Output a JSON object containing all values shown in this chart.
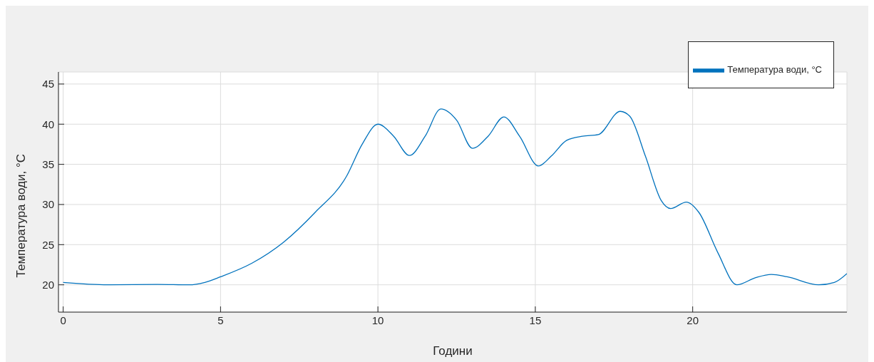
{
  "chart_data": {
    "type": "line",
    "xlabel": "Години",
    "ylabel": "Температура води, °C",
    "xlim": [
      -0.15,
      24.9
    ],
    "xticks": [
      0,
      5,
      10,
      15,
      20
    ],
    "ylim": [
      16.6,
      46.5
    ],
    "yticks": [
      20,
      25,
      30,
      35,
      40,
      45
    ],
    "grid": true,
    "legend": "top right",
    "marker": "none",
    "line_style": "solid",
    "series": [
      {
        "name": "Температура води, °C",
        "color": "#0072bd",
        "x": [
          0,
          1,
          1.5,
          3,
          4,
          4.5,
          5,
          6,
          7,
          8,
          9,
          9.5,
          10,
          10.5,
          11,
          11.5,
          12,
          12.5,
          13,
          13.5,
          14,
          14.5,
          15.1,
          15.5,
          16,
          16.5,
          17,
          17.7,
          18,
          18.5,
          19,
          19.3,
          19.8,
          20.2,
          20.8,
          21.4,
          22,
          22.5,
          23,
          24,
          24.5,
          24.9
        ],
        "values": [
          20.3,
          20.05,
          20,
          20.05,
          20,
          20.3,
          21,
          22.7,
          25.3,
          29,
          33.5,
          37.5,
          40,
          38.5,
          36.1,
          38.5,
          41.9,
          40.5,
          37,
          38.5,
          40.9,
          38.5,
          34.8,
          36,
          38,
          38.5,
          38.7,
          41.6,
          41,
          36,
          30.5,
          29.5,
          30.3,
          29,
          24,
          20,
          20.9,
          21.3,
          21,
          20,
          20.3,
          21.4
        ]
      }
    ]
  }
}
